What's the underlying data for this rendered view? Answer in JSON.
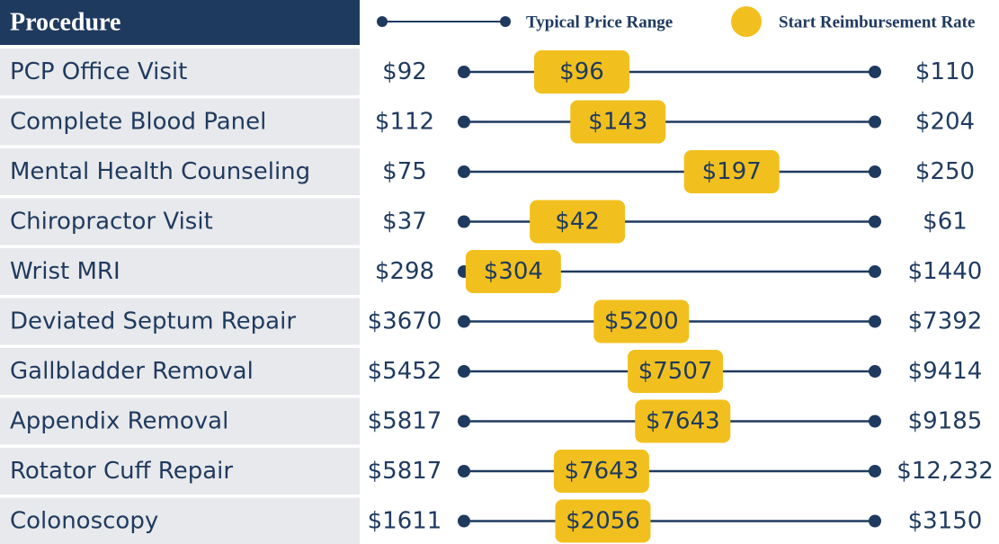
{
  "chart_data": {
    "type": "dumbbell",
    "header": "Procedure",
    "legend": {
      "range": "Typical Price Range",
      "rate": "Start Reimbursement Rate"
    },
    "range_color": "#1f3a5f",
    "rate_color": "#f2c01e",
    "categories": [
      "PCP Office Visit",
      "Complete Blood Panel",
      "Mental Health Counseling",
      "Chiropractor Visit",
      "Wrist MRI",
      "Deviated Septum Repair",
      "Gallbladder Removal",
      "Appendix Removal",
      "Rotator Cuff Repair",
      "Colonoscopy"
    ],
    "low": {
      "values": [
        92,
        112,
        75,
        37,
        298,
        3670,
        5452,
        5817,
        5817,
        1611
      ],
      "value_labels": [
        "$92",
        "$112",
        "$75",
        "$37",
        "$298",
        "$3670",
        "$5452",
        "$5817",
        "$5817",
        "$1611"
      ]
    },
    "high": {
      "values": [
        110,
        204,
        250,
        61,
        1440,
        7392,
        9414,
        9185,
        12232,
        3150
      ],
      "value_labels": [
        "$110",
        "$204",
        "$250",
        "$61",
        "$1440",
        "$7392",
        "$9414",
        "$9185",
        "$12,232",
        "$3150"
      ]
    },
    "rate": {
      "values": [
        96,
        143,
        197,
        42,
        304,
        5200,
        7507,
        7643,
        7643,
        2056
      ],
      "value_labels": [
        "$96",
        "$143",
        "$197",
        "$42",
        "$304",
        "$5200",
        "$7507",
        "$7643",
        "$7643",
        "$2056"
      ]
    }
  }
}
